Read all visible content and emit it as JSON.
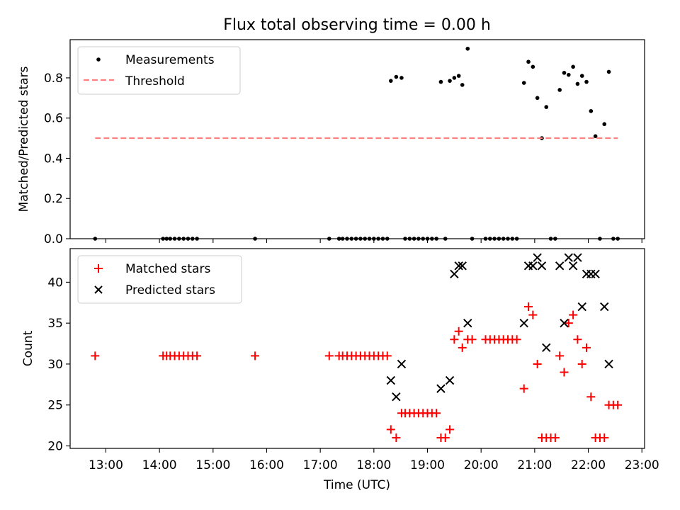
{
  "figure_title": "Flux total observing time = 0.00 h",
  "colors": {
    "measurement": "#000000",
    "threshold": "#ff7f7f",
    "matched": "#ff0000",
    "predicted": "#000000"
  },
  "chart_data": [
    {
      "type": "scatter",
      "title": "Flux total observing time = 0.00 h",
      "xlabel": "",
      "ylabel": "Matched/Predicted stars",
      "xlim": [
        "12:20",
        "23:03"
      ],
      "ylim": [
        0,
        0.99
      ],
      "yticks": [
        "0.0",
        "0.2",
        "0.4",
        "0.6",
        "0.8"
      ],
      "grid": false,
      "legend_position": "upper-left",
      "series": [
        {
          "name": "Measurements",
          "marker": "dot",
          "points": [
            [
              "12:48",
              0
            ],
            [
              "14:04",
              0
            ],
            [
              "14:08",
              0
            ],
            [
              "14:12",
              0
            ],
            [
              "14:17",
              0
            ],
            [
              "14:22",
              0
            ],
            [
              "14:27",
              0
            ],
            [
              "14:32",
              0
            ],
            [
              "14:37",
              0
            ],
            [
              "14:42",
              0
            ],
            [
              "15:47",
              0
            ],
            [
              "17:10",
              0
            ],
            [
              "17:21",
              0
            ],
            [
              "17:25",
              0
            ],
            [
              "17:30",
              0
            ],
            [
              "17:35",
              0
            ],
            [
              "17:40",
              0
            ],
            [
              "17:45",
              0
            ],
            [
              "17:50",
              0
            ],
            [
              "17:55",
              0
            ],
            [
              "18:00",
              0
            ],
            [
              "18:05",
              0
            ],
            [
              "18:10",
              0
            ],
            [
              "18:15",
              0
            ],
            [
              "18:19",
              0.785
            ],
            [
              "18:25",
              0.805
            ],
            [
              "18:31",
              0.8
            ],
            [
              "18:35",
              0
            ],
            [
              "18:40",
              0
            ],
            [
              "18:45",
              0
            ],
            [
              "18:50",
              0
            ],
            [
              "18:55",
              0
            ],
            [
              "19:00",
              0
            ],
            [
              "19:05",
              0
            ],
            [
              "19:10",
              0
            ],
            [
              "19:15",
              0.78
            ],
            [
              "19:20",
              0
            ],
            [
              "19:25",
              0.785
            ],
            [
              "19:30",
              0.8
            ],
            [
              "19:35",
              0.81
            ],
            [
              "19:39",
              0.765
            ],
            [
              "19:45",
              0.945
            ],
            [
              "19:50",
              0
            ],
            [
              "20:05",
              0
            ],
            [
              "20:10",
              0
            ],
            [
              "20:15",
              0
            ],
            [
              "20:20",
              0
            ],
            [
              "20:25",
              0
            ],
            [
              "20:30",
              0
            ],
            [
              "20:35",
              0
            ],
            [
              "20:40",
              0
            ],
            [
              "20:48",
              0.775
            ],
            [
              "20:53",
              0.88
            ],
            [
              "20:58",
              0.855
            ],
            [
              "21:03",
              0.7
            ],
            [
              "21:08",
              0.5
            ],
            [
              "21:13",
              0.655
            ],
            [
              "21:18",
              0
            ],
            [
              "21:23",
              0
            ],
            [
              "21:28",
              0.74
            ],
            [
              "21:33",
              0.825
            ],
            [
              "21:38",
              0.815
            ],
            [
              "21:43",
              0.855
            ],
            [
              "21:48",
              0.77
            ],
            [
              "21:53",
              0.81
            ],
            [
              "21:58",
              0.78
            ],
            [
              "22:03",
              0.635
            ],
            [
              "22:08",
              0.51
            ],
            [
              "22:13",
              0
            ],
            [
              "22:18",
              0.57
            ],
            [
              "22:23",
              0.83
            ],
            [
              "22:28",
              0
            ],
            [
              "22:33",
              0
            ]
          ]
        },
        {
          "name": "Threshold",
          "line": "dashed",
          "points": [
            [
              "12:48",
              0.5
            ],
            [
              "22:33",
              0.5
            ]
          ]
        }
      ]
    },
    {
      "type": "scatter",
      "title": "",
      "xlabel": "Time (UTC)",
      "ylabel": "Count",
      "xlim": [
        "12:20",
        "23:03"
      ],
      "ylim": [
        19.7,
        44.1
      ],
      "xticks": [
        "13:00",
        "14:00",
        "15:00",
        "16:00",
        "17:00",
        "18:00",
        "19:00",
        "20:00",
        "21:00",
        "22:00",
        "23:00"
      ],
      "yticks": [
        "20",
        "25",
        "30",
        "35",
        "40"
      ],
      "grid": false,
      "legend_position": "upper-left",
      "series": [
        {
          "name": "Matched stars",
          "marker": "plus",
          "points": [
            [
              "12:48",
              31
            ],
            [
              "14:04",
              31
            ],
            [
              "14:08",
              31
            ],
            [
              "14:12",
              31
            ],
            [
              "14:17",
              31
            ],
            [
              "14:22",
              31
            ],
            [
              "14:27",
              31
            ],
            [
              "14:32",
              31
            ],
            [
              "14:37",
              31
            ],
            [
              "14:42",
              31
            ],
            [
              "15:47",
              31
            ],
            [
              "17:10",
              31
            ],
            [
              "17:21",
              31
            ],
            [
              "17:25",
              31
            ],
            [
              "17:30",
              31
            ],
            [
              "17:35",
              31
            ],
            [
              "17:40",
              31
            ],
            [
              "17:45",
              31
            ],
            [
              "17:50",
              31
            ],
            [
              "17:55",
              31
            ],
            [
              "18:00",
              31
            ],
            [
              "18:05",
              31
            ],
            [
              "18:10",
              31
            ],
            [
              "18:15",
              31
            ],
            [
              "18:19",
              22
            ],
            [
              "18:25",
              21
            ],
            [
              "18:31",
              24
            ],
            [
              "18:35",
              24
            ],
            [
              "18:40",
              24
            ],
            [
              "18:45",
              24
            ],
            [
              "18:50",
              24
            ],
            [
              "18:55",
              24
            ],
            [
              "19:00",
              24
            ],
            [
              "19:05",
              24
            ],
            [
              "19:10",
              24
            ],
            [
              "19:15",
              21
            ],
            [
              "19:20",
              21
            ],
            [
              "19:25",
              22
            ],
            [
              "19:30",
              33
            ],
            [
              "19:35",
              34
            ],
            [
              "19:39",
              32
            ],
            [
              "19:45",
              33
            ],
            [
              "19:50",
              33
            ],
            [
              "20:05",
              33
            ],
            [
              "20:10",
              33
            ],
            [
              "20:15",
              33
            ],
            [
              "20:20",
              33
            ],
            [
              "20:25",
              33
            ],
            [
              "20:30",
              33
            ],
            [
              "20:35",
              33
            ],
            [
              "20:40",
              33
            ],
            [
              "20:48",
              27
            ],
            [
              "20:53",
              37
            ],
            [
              "20:58",
              36
            ],
            [
              "21:03",
              30
            ],
            [
              "21:08",
              21
            ],
            [
              "21:13",
              21
            ],
            [
              "21:18",
              21
            ],
            [
              "21:23",
              21
            ],
            [
              "21:28",
              31
            ],
            [
              "21:33",
              29
            ],
            [
              "21:38",
              35
            ],
            [
              "21:43",
              36
            ],
            [
              "21:48",
              33
            ],
            [
              "21:53",
              30
            ],
            [
              "21:58",
              32
            ],
            [
              "22:03",
              26
            ],
            [
              "22:08",
              21
            ],
            [
              "22:13",
              21
            ],
            [
              "22:18",
              21
            ],
            [
              "22:23",
              25
            ],
            [
              "22:28",
              25
            ],
            [
              "22:33",
              25
            ]
          ]
        },
        {
          "name": "Predicted stars",
          "marker": "x",
          "points": [
            [
              "18:19",
              28
            ],
            [
              "18:25",
              26
            ],
            [
              "18:31",
              30
            ],
            [
              "19:15",
              27
            ],
            [
              "19:25",
              28
            ],
            [
              "19:30",
              41
            ],
            [
              "19:35",
              42
            ],
            [
              "19:39",
              42
            ],
            [
              "19:45",
              35
            ],
            [
              "20:48",
              35
            ],
            [
              "20:53",
              42
            ],
            [
              "20:58",
              42
            ],
            [
              "21:03",
              43
            ],
            [
              "21:08",
              42
            ],
            [
              "21:13",
              32
            ],
            [
              "21:28",
              42
            ],
            [
              "21:33",
              35
            ],
            [
              "21:38",
              43
            ],
            [
              "21:43",
              42
            ],
            [
              "21:48",
              43
            ],
            [
              "21:53",
              37
            ],
            [
              "21:58",
              41
            ],
            [
              "22:03",
              41
            ],
            [
              "22:08",
              41
            ],
            [
              "22:18",
              37
            ],
            [
              "22:23",
              30
            ]
          ]
        }
      ]
    }
  ]
}
